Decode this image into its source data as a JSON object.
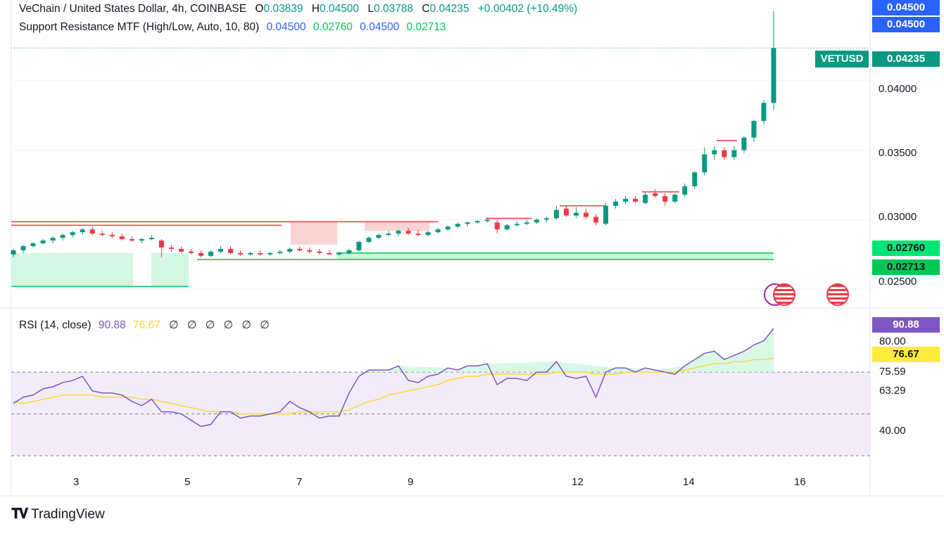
{
  "header": {
    "symbol_line": "VeChain / United States Dollar, 4h, COINBASE",
    "ohlc": [
      {
        "key": "O",
        "val": "0.03839"
      },
      {
        "key": "H",
        "val": "0.04500"
      },
      {
        "key": "L",
        "val": "0.03788"
      },
      {
        "key": "C",
        "val": "0.04235"
      }
    ],
    "change": "+0.00402 (+10.49%)",
    "indicator_name": "Support Resistance MTF (High/Low, Auto, 10, 80)",
    "indicator_values": [
      "0.04500",
      "0.02760",
      "0.04500",
      "0.02713"
    ],
    "rsi_name": "RSI (14, close)",
    "rsi_value": "90.88",
    "rsi_ma": "76.67",
    "rsi_extra": [
      "∅",
      "∅",
      "∅",
      "∅",
      "∅",
      "∅"
    ]
  },
  "price_axis": {
    "ticks": [
      "0.04000",
      "0.03500",
      "0.03000",
      "0.02500"
    ],
    "labels": [
      {
        "text": "0.04500",
        "value": 0.045,
        "color": "#2962ff"
      },
      {
        "text": "0.04500",
        "value": 0.045,
        "color": "#2962ff"
      },
      {
        "text": "0.04235",
        "value": 0.04235,
        "color": "#089981",
        "symbol": "VETUSD"
      },
      {
        "text": "0.02760",
        "value": 0.0276,
        "color": "#00e676"
      },
      {
        "text": "0.02713",
        "value": 0.02713,
        "color": "#00c853"
      }
    ]
  },
  "rsi_axis": {
    "ticks": [
      "75.59",
      "63.29",
      "40.00"
    ],
    "labels": [
      {
        "text": "90.88",
        "value": 90.88,
        "color": "#7e57c2"
      },
      {
        "text": "80.00",
        "value": 80,
        "color": "#ffffff"
      },
      {
        "text": "76.67",
        "value": 76.67,
        "color": "#ffeb3b"
      }
    ]
  },
  "time_axis": [
    "3",
    "5",
    "7",
    "9",
    "12",
    "14",
    "16"
  ],
  "branding": "TradingView",
  "colors": {
    "up": "#089981",
    "down": "#f23645",
    "rsi": "#7e57c2",
    "rsi_ma": "#fdd835",
    "support": "#00c853",
    "resistance": "#f23645"
  },
  "chart_data": {
    "type": "candlestick",
    "title": "VeChain / United States Dollar, 4h, COINBASE",
    "ylim": [
      0.0237,
      0.0458
    ],
    "x_ticks": [
      "3",
      "5",
      "7",
      "9",
      "12",
      "14",
      "16"
    ],
    "last_price": 0.04235,
    "candles": [
      [
        0.0275,
        0.0279,
        0.0273,
        0.0278
      ],
      [
        0.0278,
        0.0282,
        0.0276,
        0.0281
      ],
      [
        0.0281,
        0.0284,
        0.028,
        0.0283
      ],
      [
        0.0283,
        0.0286,
        0.0282,
        0.0285
      ],
      [
        0.0285,
        0.0288,
        0.0283,
        0.0287
      ],
      [
        0.0287,
        0.029,
        0.0285,
        0.0289
      ],
      [
        0.0289,
        0.0292,
        0.0287,
        0.0291
      ],
      [
        0.0291,
        0.0294,
        0.0289,
        0.0293
      ],
      [
        0.0293,
        0.0295,
        0.0289,
        0.029
      ],
      [
        0.029,
        0.0292,
        0.0288,
        0.0289
      ],
      [
        0.0289,
        0.0291,
        0.0287,
        0.0288
      ],
      [
        0.0288,
        0.029,
        0.0285,
        0.0286
      ],
      [
        0.0286,
        0.0288,
        0.0284,
        0.0285
      ],
      [
        0.0285,
        0.0287,
        0.0283,
        0.0286
      ],
      [
        0.0286,
        0.0289,
        0.0285,
        0.0287
      ],
      [
        0.0285,
        0.0286,
        0.0273,
        0.028
      ],
      [
        0.028,
        0.0282,
        0.0277,
        0.0279
      ],
      [
        0.0279,
        0.0281,
        0.0276,
        0.0277
      ],
      [
        0.0277,
        0.0279,
        0.0275,
        0.0276
      ],
      [
        0.0276,
        0.0278,
        0.0273,
        0.0274
      ],
      [
        0.0274,
        0.0278,
        0.0273,
        0.0277
      ],
      [
        0.0277,
        0.0281,
        0.0276,
        0.0279
      ],
      [
        0.0279,
        0.0281,
        0.0275,
        0.0276
      ],
      [
        0.0276,
        0.0278,
        0.0274,
        0.0275
      ],
      [
        0.0275,
        0.0277,
        0.0274,
        0.0276
      ],
      [
        0.0276,
        0.0278,
        0.0274,
        0.0275
      ],
      [
        0.0275,
        0.0277,
        0.0274,
        0.0276
      ],
      [
        0.0276,
        0.0278,
        0.0275,
        0.0277
      ],
      [
        0.0277,
        0.028,
        0.0276,
        0.0279
      ],
      [
        0.0279,
        0.0281,
        0.0277,
        0.0278
      ],
      [
        0.0278,
        0.028,
        0.0276,
        0.0277
      ],
      [
        0.0277,
        0.0279,
        0.0275,
        0.0276
      ],
      [
        0.0276,
        0.0278,
        0.0275,
        0.0275
      ],
      [
        0.0275,
        0.0277,
        0.0274,
        0.0276
      ],
      [
        0.0276,
        0.0279,
        0.0275,
        0.0278
      ],
      [
        0.0278,
        0.0285,
        0.0277,
        0.0284
      ],
      [
        0.0284,
        0.0288,
        0.0283,
        0.0287
      ],
      [
        0.0287,
        0.029,
        0.0286,
        0.0289
      ],
      [
        0.0289,
        0.0292,
        0.0288,
        0.029
      ],
      [
        0.029,
        0.0293,
        0.0288,
        0.0292
      ],
      [
        0.0292,
        0.0294,
        0.0289,
        0.029
      ],
      [
        0.029,
        0.0293,
        0.0288,
        0.0289
      ],
      [
        0.0289,
        0.0292,
        0.0288,
        0.0291
      ],
      [
        0.0291,
        0.0294,
        0.029,
        0.0293
      ],
      [
        0.0293,
        0.0296,
        0.0292,
        0.0295
      ],
      [
        0.0295,
        0.0298,
        0.0294,
        0.0297
      ],
      [
        0.0297,
        0.0299,
        0.0295,
        0.0298
      ],
      [
        0.0298,
        0.03,
        0.0297,
        0.0299
      ],
      [
        0.0299,
        0.0301,
        0.0298,
        0.03
      ],
      [
        0.0298,
        0.03,
        0.029,
        0.0293
      ],
      [
        0.0293,
        0.0297,
        0.0292,
        0.0296
      ],
      [
        0.0296,
        0.0299,
        0.0295,
        0.0297
      ],
      [
        0.0297,
        0.03,
        0.0296,
        0.0298
      ],
      [
        0.0298,
        0.0301,
        0.0297,
        0.03
      ],
      [
        0.03,
        0.0302,
        0.0298,
        0.0301
      ],
      [
        0.0301,
        0.031,
        0.03,
        0.0307
      ],
      [
        0.0308,
        0.031,
        0.0302,
        0.0303
      ],
      [
        0.0303,
        0.0309,
        0.0301,
        0.0305
      ],
      [
        0.0305,
        0.0308,
        0.0301,
        0.0302
      ],
      [
        0.0302,
        0.0304,
        0.0296,
        0.0298
      ],
      [
        0.0297,
        0.0312,
        0.0296,
        0.031
      ],
      [
        0.031,
        0.0315,
        0.0308,
        0.0313
      ],
      [
        0.0313,
        0.0317,
        0.0311,
        0.0315
      ],
      [
        0.0315,
        0.0317,
        0.0312,
        0.0313
      ],
      [
        0.0312,
        0.032,
        0.0311,
        0.0318
      ],
      [
        0.0319,
        0.0322,
        0.0316,
        0.0317
      ],
      [
        0.0317,
        0.0319,
        0.031,
        0.0313
      ],
      [
        0.0313,
        0.0319,
        0.0312,
        0.0318
      ],
      [
        0.0318,
        0.0326,
        0.0316,
        0.0324
      ],
      [
        0.0324,
        0.0335,
        0.0322,
        0.0334
      ],
      [
        0.0334,
        0.0352,
        0.0332,
        0.0347
      ],
      [
        0.0347,
        0.0353,
        0.0343,
        0.035
      ],
      [
        0.035,
        0.0352,
        0.0343,
        0.0345
      ],
      [
        0.0345,
        0.0353,
        0.0343,
        0.035
      ],
      [
        0.035,
        0.036,
        0.0348,
        0.0359
      ],
      [
        0.0359,
        0.0372,
        0.0356,
        0.0371
      ],
      [
        0.0371,
        0.0386,
        0.0368,
        0.0384
      ],
      [
        0.0384,
        0.045,
        0.0379,
        0.04235
      ]
    ],
    "support_resistance": {
      "resistance_high": 0.045,
      "support_low": 0.0276,
      "support_low2": 0.02713
    },
    "rsi": {
      "ylim": [
        26,
        100
      ],
      "bands": [
        30,
        50,
        70
      ],
      "series": [
        {
          "name": "RSI",
          "values": [
            55,
            58,
            59,
            62,
            63,
            65,
            66,
            68,
            61,
            60,
            60,
            59,
            56,
            54,
            57,
            51,
            51,
            50,
            47,
            44,
            45,
            51,
            51,
            48,
            49,
            49,
            50,
            51,
            56,
            53,
            51,
            48,
            49,
            49,
            60,
            68,
            71,
            71,
            71,
            73,
            66,
            65,
            68,
            69,
            72,
            71,
            73,
            73,
            74,
            64,
            67,
            67,
            66,
            70,
            70,
            75,
            68,
            67,
            68,
            58,
            70,
            72,
            72,
            70,
            72,
            71,
            70,
            69,
            73,
            76,
            79,
            80,
            76,
            78,
            80,
            83,
            85,
            90.88
          ]
        },
        {
          "name": "RSI-based MA",
          "values": [
            56,
            55,
            56,
            57,
            58,
            59,
            59,
            59,
            59,
            58,
            58,
            58,
            58,
            57,
            57,
            56,
            55,
            54,
            53,
            52,
            51,
            51,
            51,
            50,
            50,
            50,
            50,
            50,
            50,
            51,
            51,
            51,
            51,
            51,
            52,
            54,
            56,
            57,
            59,
            60,
            61,
            62,
            63,
            64,
            66,
            67,
            68,
            68,
            69,
            69,
            69,
            69,
            69,
            69,
            69,
            70,
            70,
            70,
            70,
            69,
            69,
            69,
            70,
            70,
            70,
            70,
            70,
            70,
            71,
            72,
            73,
            74,
            74,
            75,
            75,
            76,
            76,
            76.67
          ]
        }
      ]
    }
  }
}
